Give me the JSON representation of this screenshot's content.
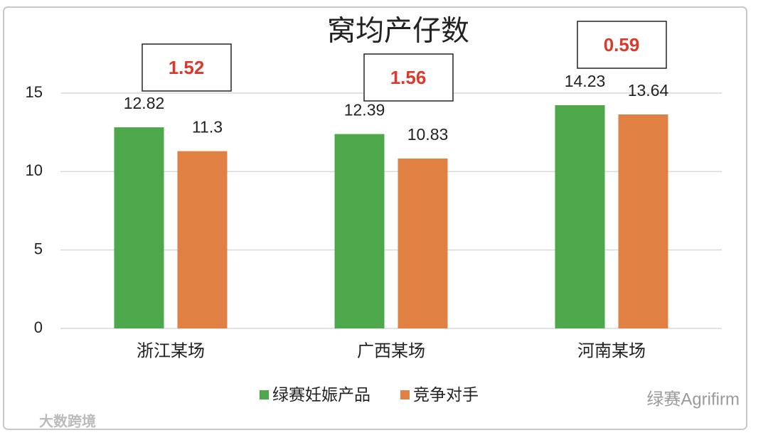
{
  "chart_data": {
    "type": "bar",
    "title": "窝均产仔数",
    "categories": [
      "浙江某场",
      "广西某场",
      "河南某场"
    ],
    "series": [
      {
        "name": "绿赛妊娠产品",
        "color": "#4ca84a",
        "values": [
          12.82,
          12.39,
          14.23
        ]
      },
      {
        "name": "竞争对手",
        "color": "#e08043",
        "values": [
          11.3,
          10.83,
          13.64
        ]
      }
    ],
    "annotations": [
      "1.52",
      "1.56",
      "0.59"
    ],
    "ylim": [
      0,
      15
    ],
    "yticks": [
      0,
      5,
      10,
      15
    ],
    "grid": true,
    "legend": "bottom"
  },
  "watermarks": [
    "绿赛Agrifirm",
    "大数跨境"
  ]
}
